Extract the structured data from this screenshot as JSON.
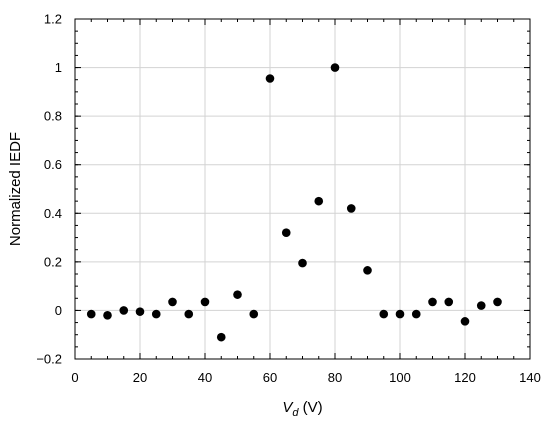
{
  "chart_data": {
    "type": "scatter",
    "title": "",
    "xlabel_main": "V",
    "xlabel_sub": "d",
    "xlabel_unit": " (V)",
    "ylabel": "Normalized IEDF",
    "xlim": [
      0,
      140
    ],
    "ylim": [
      -0.2,
      1.2
    ],
    "x_ticks": [
      0,
      20,
      40,
      60,
      80,
      100,
      120,
      140
    ],
    "x_tick_labels": [
      "0",
      "20",
      "40",
      "60",
      "80",
      "100",
      "120",
      "140"
    ],
    "y_ticks": [
      -0.2,
      0,
      0.2,
      0.4,
      0.6,
      0.8,
      1,
      1.2
    ],
    "y_tick_labels": [
      "−0.2",
      "0",
      "0.2",
      "0.4",
      "0.6",
      "0.8",
      "1",
      "1.2"
    ],
    "grid": true,
    "marker_color": "#000000",
    "grid_color": "#d3d3d3",
    "series": [
      {
        "x": [
          5,
          10,
          15,
          20,
          25,
          30,
          35,
          40,
          45,
          50,
          55,
          60,
          65,
          70,
          75,
          80,
          85,
          90,
          95,
          100,
          105,
          110,
          115,
          120,
          125,
          130
        ],
        "y": [
          -0.015,
          -0.02,
          0.0,
          -0.005,
          -0.015,
          0.035,
          -0.015,
          0.035,
          -0.11,
          0.065,
          -0.015,
          0.955,
          0.32,
          0.195,
          0.45,
          1.0,
          0.42,
          0.165,
          -0.015,
          -0.015,
          -0.015,
          0.035,
          0.035,
          -0.045,
          0.02,
          0.035
        ]
      }
    ]
  }
}
